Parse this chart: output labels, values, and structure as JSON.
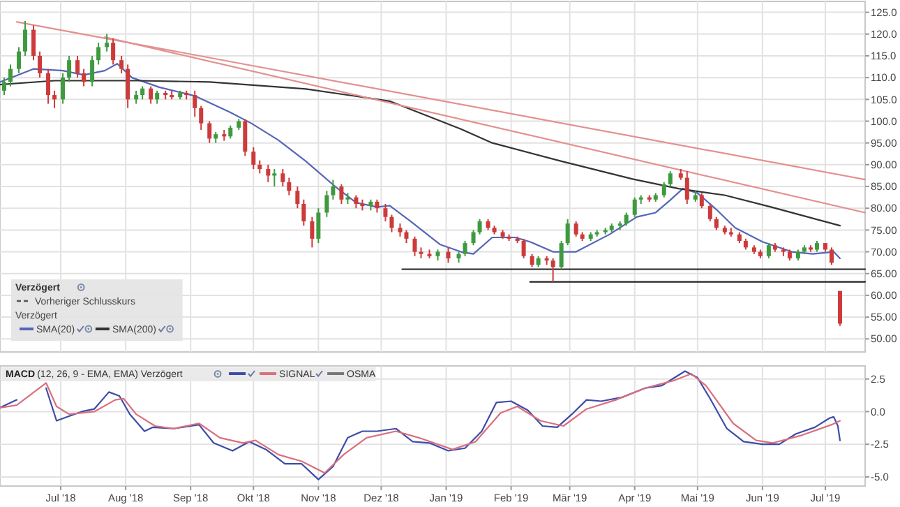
{
  "chart_data": [
    {
      "type": "candlestick",
      "legend_title": "Verzögert",
      "legend": "bottom left",
      "grid": true,
      "tick_labels": "y",
      "annotations": [
        "Vorheriger Schlusskurs",
        "Verzögert"
      ],
      "xlim": [
        "2018-06-02",
        "2019-07-20"
      ],
      "xticks": [
        {
          "value": "2018-07-01",
          "label": null
        },
        {
          "value": "2018-08-01",
          "label": null
        },
        {
          "value": "2018-09-01",
          "label": null
        },
        {
          "value": "2018-10-01",
          "label": null
        },
        {
          "value": "2018-11-01",
          "label": null
        },
        {
          "value": "2018-12-01",
          "label": null
        },
        {
          "value": "2019-01-01",
          "label": null
        },
        {
          "value": "2019-02-01",
          "label": null
        },
        {
          "value": "2019-03-01",
          "label": null
        },
        {
          "value": "2019-04-01",
          "label": null
        },
        {
          "value": "2019-05-01",
          "label": null
        },
        {
          "value": "2019-06-01",
          "label": null
        },
        {
          "value": "2019-07-01",
          "label": null
        }
      ],
      "ylim": [
        47,
        127.5
      ],
      "yticks": [
        {
          "value": 50,
          "label": "50.00"
        },
        {
          "value": 55,
          "label": "55.00"
        },
        {
          "value": 60,
          "label": "60.00"
        },
        {
          "value": 65,
          "label": "65.00"
        },
        {
          "value": 70,
          "label": "70.00"
        },
        {
          "value": 75,
          "label": "75.00"
        },
        {
          "value": 80,
          "label": "80.00"
        },
        {
          "value": 85,
          "label": "85.00"
        },
        {
          "value": 90,
          "label": "90.00"
        },
        {
          "value": 95,
          "label": "95.00"
        },
        {
          "value": 100,
          "label": "100.0"
        },
        {
          "value": 105,
          "label": "105.0"
        },
        {
          "value": 110,
          "label": "110.0"
        },
        {
          "value": 115,
          "label": "115.0"
        },
        {
          "value": 120,
          "label": "120.0"
        },
        {
          "value": 125,
          "label": "125.0"
        }
      ],
      "x": [
        "2018-06-04",
        "2018-06-07",
        "2018-06-11",
        "2018-06-14",
        "2018-06-18",
        "2018-06-21",
        "2018-06-25",
        "2018-06-28",
        "2018-07-02",
        "2018-07-05",
        "2018-07-09",
        "2018-07-12",
        "2018-07-16",
        "2018-07-19",
        "2018-07-23",
        "2018-07-26",
        "2018-07-30",
        "2018-08-02",
        "2018-08-06",
        "2018-08-09",
        "2018-08-13",
        "2018-08-16",
        "2018-08-20",
        "2018-08-23",
        "2018-08-27",
        "2018-08-30",
        "2018-09-03",
        "2018-09-06",
        "2018-09-10",
        "2018-09-13",
        "2018-09-17",
        "2018-09-20",
        "2018-09-24",
        "2018-09-27",
        "2018-10-01",
        "2018-10-04",
        "2018-10-08",
        "2018-10-11",
        "2018-10-15",
        "2018-10-18",
        "2018-10-22",
        "2018-10-25",
        "2018-10-29",
        "2018-11-01",
        "2018-11-05",
        "2018-11-08",
        "2018-11-12",
        "2018-11-15",
        "2018-11-19",
        "2018-11-22",
        "2018-11-26",
        "2018-11-29",
        "2018-12-03",
        "2018-12-06",
        "2018-12-10",
        "2018-12-13",
        "2018-12-17",
        "2018-12-20",
        "2018-12-24",
        "2018-12-28",
        "2019-01-02",
        "2019-01-07",
        "2019-01-10",
        "2019-01-14",
        "2019-01-17",
        "2019-01-21",
        "2019-01-24",
        "2019-01-28",
        "2019-01-31",
        "2019-02-04",
        "2019-02-07",
        "2019-02-11",
        "2019-02-14",
        "2019-02-18",
        "2019-02-21",
        "2019-02-25",
        "2019-02-28",
        "2019-03-04",
        "2019-03-07",
        "2019-03-11",
        "2019-03-14",
        "2019-03-18",
        "2019-03-21",
        "2019-03-25",
        "2019-03-28",
        "2019-04-01",
        "2019-04-04",
        "2019-04-08",
        "2019-04-11",
        "2019-04-15",
        "2019-04-18",
        "2019-04-23",
        "2019-04-26",
        "2019-04-30",
        "2019-05-03",
        "2019-05-07",
        "2019-05-10",
        "2019-05-14",
        "2019-05-17",
        "2019-05-21",
        "2019-05-24",
        "2019-05-28",
        "2019-05-31",
        "2019-06-04",
        "2019-06-07",
        "2019-06-11",
        "2019-06-14",
        "2019-06-18",
        "2019-06-21",
        "2019-06-24",
        "2019-06-27",
        "2019-07-01",
        "2019-07-04",
        "2019-07-08"
      ],
      "ohlc": [
        [
          107,
          110,
          106,
          109
        ],
        [
          109,
          113,
          108,
          112
        ],
        [
          112,
          117,
          111,
          116
        ],
        [
          116,
          123,
          115,
          121
        ],
        [
          121,
          122,
          114,
          115
        ],
        [
          115,
          116,
          110,
          111
        ],
        [
          111,
          112,
          104,
          106
        ],
        [
          106,
          107,
          103,
          105
        ],
        [
          105,
          111,
          104,
          110
        ],
        [
          110,
          115,
          109,
          114
        ],
        [
          114,
          115,
          110,
          111
        ],
        [
          111,
          112,
          108,
          109
        ],
        [
          109,
          115,
          108,
          114
        ],
        [
          114,
          118,
          113,
          117
        ],
        [
          117,
          120,
          116,
          118
        ],
        [
          118,
          119,
          113,
          114
        ],
        [
          114,
          115,
          111,
          112
        ],
        [
          112,
          113,
          103,
          105
        ],
        [
          105,
          107,
          104,
          106
        ],
        [
          106,
          108,
          105,
          107.5
        ],
        [
          107.5,
          108,
          104,
          105
        ],
        [
          105,
          107,
          104,
          106.5
        ],
        [
          106.5,
          107,
          105,
          106
        ],
        [
          106,
          107,
          105,
          105.5
        ],
        [
          105.5,
          107,
          105,
          106.5
        ],
        [
          106.5,
          107,
          105,
          106
        ],
        [
          106,
          107,
          101,
          103
        ],
        [
          103,
          103.5,
          98,
          99.5
        ],
        [
          99.5,
          100,
          95,
          96
        ],
        [
          96,
          97.5,
          95,
          97
        ],
        [
          97,
          98,
          95.5,
          96.5
        ],
        [
          96.5,
          99,
          96,
          98.5
        ],
        [
          98.5,
          100.5,
          98,
          100
        ],
        [
          100,
          100.5,
          92,
          93
        ],
        [
          93,
          94,
          89,
          90
        ],
        [
          90,
          91,
          88,
          89
        ],
        [
          89,
          90,
          86,
          87.5
        ],
        [
          87.5,
          89,
          85,
          88
        ],
        [
          88,
          89,
          85,
          86
        ],
        [
          86,
          87,
          83,
          84
        ],
        [
          84,
          85,
          80,
          81
        ],
        [
          81,
          82,
          76,
          77
        ],
        [
          77,
          78,
          71,
          73
        ],
        [
          73,
          80,
          72,
          79
        ],
        [
          79,
          84,
          78,
          83
        ],
        [
          83,
          86.5,
          82,
          85
        ],
        [
          85,
          85.5,
          81,
          82
        ],
        [
          82,
          83.5,
          81,
          82.5
        ],
        [
          82.5,
          83,
          80,
          81
        ],
        [
          81,
          82,
          79.5,
          80.5
        ],
        [
          80.5,
          82,
          79.5,
          81.5
        ],
        [
          81.5,
          82,
          79,
          80
        ],
        [
          80,
          81,
          77,
          78
        ],
        [
          78,
          78.5,
          74.5,
          75.5
        ],
        [
          75.5,
          76.5,
          73.5,
          74.5
        ],
        [
          74.5,
          75,
          72,
          73
        ],
        [
          73,
          73.5,
          69,
          70
        ],
        [
          70,
          71,
          68.5,
          69.5
        ],
        [
          69.5,
          70.5,
          68.5,
          69
        ],
        [
          69,
          70.5,
          68,
          70
        ],
        [
          70,
          71,
          67.5,
          68.5
        ],
        [
          68.5,
          70,
          67.5,
          69.5
        ],
        [
          69.5,
          72.5,
          69,
          72
        ],
        [
          72,
          75,
          71.5,
          74.5
        ],
        [
          74.5,
          77.5,
          74,
          77
        ],
        [
          77,
          77.5,
          75,
          75.5
        ],
        [
          75.5,
          76,
          74,
          74.5
        ],
        [
          74.5,
          75,
          73,
          73.5
        ],
        [
          73.5,
          74,
          72.5,
          73
        ],
        [
          73,
          73.5,
          72,
          72.5
        ],
        [
          72.5,
          73,
          68.5,
          69
        ],
        [
          69,
          69.5,
          66.5,
          67
        ],
        [
          67,
          69,
          66.5,
          68.5
        ],
        [
          68.5,
          69,
          67,
          68
        ],
        [
          68,
          68.5,
          63,
          66.5
        ],
        [
          66.5,
          72.5,
          66,
          72
        ],
        [
          72,
          77.5,
          71.5,
          76.5
        ],
        [
          76.5,
          77,
          73.5,
          74
        ],
        [
          74,
          74.5,
          72.5,
          73
        ],
        [
          73,
          74.5,
          72.5,
          74
        ],
        [
          74,
          75,
          73.5,
          74.5
        ],
        [
          74.5,
          75.5,
          74,
          75
        ],
        [
          75,
          76.5,
          74.5,
          76
        ],
        [
          76,
          77,
          75,
          76.5
        ],
        [
          76.5,
          79,
          76,
          78.5
        ],
        [
          78.5,
          82.5,
          78,
          82
        ],
        [
          82,
          83,
          81,
          82.5
        ],
        [
          82.5,
          83,
          81.5,
          82
        ],
        [
          82,
          83.5,
          81.5,
          83
        ],
        [
          83,
          86,
          82.5,
          85.5
        ],
        [
          85.5,
          88.5,
          85,
          88
        ],
        [
          88,
          89,
          86.5,
          87
        ],
        [
          87,
          88.5,
          81,
          82
        ],
        [
          82,
          84,
          81.5,
          83
        ],
        [
          83,
          83.5,
          80,
          80.5
        ],
        [
          80.5,
          81,
          77,
          77.5
        ],
        [
          77.5,
          78,
          75,
          75.5
        ],
        [
          75.5,
          76,
          74,
          74.5
        ],
        [
          74.5,
          75.5,
          73.5,
          74
        ],
        [
          74,
          74.5,
          72,
          72.5
        ],
        [
          72.5,
          73,
          70.5,
          71
        ],
        [
          71,
          71.5,
          69.5,
          70
        ],
        [
          70,
          70.5,
          68.5,
          69
        ],
        [
          69,
          72,
          68.5,
          71.5
        ],
        [
          71.5,
          72,
          70,
          70.5
        ],
        [
          70.5,
          71,
          69,
          70
        ],
        [
          70,
          70.5,
          68,
          68.5
        ],
        [
          68.5,
          70.5,
          68,
          70
        ],
        [
          70,
          71.5,
          69.5,
          71
        ],
        [
          71,
          71.5,
          70,
          70.5
        ],
        [
          70.5,
          72.5,
          70,
          72
        ],
        [
          72,
          72,
          70,
          70.5
        ],
        [
          70.5,
          71,
          67,
          67.5
        ],
        [
          61,
          61,
          53,
          53.5
        ]
      ],
      "series": [
        {
          "type": "line",
          "name": "SMA(20)",
          "color": "#5565b8",
          "x": [
            "2018-06-02",
            "2018-06-18",
            "2018-07-02",
            "2018-07-12",
            "2018-07-22",
            "2018-07-28",
            "2018-08-04",
            "2018-08-17",
            "2018-09-03",
            "2018-09-20",
            "2018-09-30",
            "2018-10-13",
            "2018-10-26",
            "2018-11-09",
            "2018-11-19",
            "2018-11-29",
            "2018-12-05",
            "2018-12-15",
            "2018-12-29",
            "2019-01-08",
            "2019-01-14",
            "2019-01-23",
            "2019-02-03",
            "2019-02-10",
            "2019-02-21",
            "2019-03-04",
            "2019-03-20",
            "2019-04-02",
            "2019-04-11",
            "2019-04-18",
            "2019-04-24",
            "2019-05-01",
            "2019-05-10",
            "2019-05-19",
            "2019-06-01",
            "2019-06-15",
            "2019-06-25",
            "2019-07-05",
            "2019-07-08"
          ],
          "values": [
            109,
            112,
            111.6,
            110.6,
            111.6,
            113.2,
            110,
            107.8,
            105.8,
            102,
            99.5,
            95.6,
            90.8,
            85,
            81.3,
            80.3,
            80.6,
            77,
            71.7,
            70,
            69.5,
            73.3,
            73.3,
            72.3,
            70,
            70,
            74,
            78,
            79,
            81.9,
            84.5,
            83.5,
            79.7,
            75.5,
            72.3,
            70,
            69.5,
            70,
            68.5
          ]
        },
        {
          "type": "line",
          "name": "SMA(200)",
          "color": "#333333",
          "x": [
            "2018-06-02",
            "2018-06-28",
            "2018-08-07",
            "2018-09-10",
            "2018-10-26",
            "2018-12-05",
            "2019-01-08",
            "2019-01-23",
            "2019-02-25",
            "2019-03-31",
            "2019-04-22",
            "2019-05-14",
            "2019-06-05",
            "2019-07-08"
          ],
          "values": [
            108.4,
            109.3,
            109.3,
            109,
            107.4,
            104.6,
            98.2,
            95,
            90.8,
            86.7,
            84.5,
            83,
            80.3,
            76
          ]
        },
        {
          "type": "line",
          "color": "#e39090",
          "x": [
            "2018-06-10",
            "2019-07-20"
          ],
          "values": [
            122.8,
            86.6
          ]
        },
        {
          "type": "line",
          "color": "#e39090",
          "x": [
            "2018-07-22",
            "2019-07-20"
          ],
          "values": [
            119.3,
            79
          ]
        },
        {
          "type": "line",
          "color": "#222222",
          "x": [
            "2018-12-11",
            "2019-07-20"
          ],
          "values": [
            66,
            66
          ]
        },
        {
          "type": "line",
          "color": "#222222",
          "x": [
            "2019-02-10",
            "2019-07-20"
          ],
          "values": [
            63.1,
            63.1
          ]
        }
      ]
    },
    {
      "type": "line",
      "title": "MACD",
      "subtitle": "(12, 26, 9 - EMA, EMA) Verzögert",
      "legend": "top left",
      "grid": true,
      "annotations": [
        "OSMA"
      ],
      "xlim": [
        "2018-06-02",
        "2019-07-20"
      ],
      "xticks": [
        {
          "value": "2018-07-01",
          "label": "Jul '18"
        },
        {
          "value": "2018-08-01",
          "label": "Aug '18"
        },
        {
          "value": "2018-09-01",
          "label": "Sep '18"
        },
        {
          "value": "2018-10-01",
          "label": "Okt '18"
        },
        {
          "value": "2018-11-01",
          "label": "Nov '18"
        },
        {
          "value": "2018-12-01",
          "label": "Dez '18"
        },
        {
          "value": "2019-01-01",
          "label": "Jan '19"
        },
        {
          "value": "2019-02-01",
          "label": "Feb '19"
        },
        {
          "value": "2019-03-01",
          "label": "Mär '19"
        },
        {
          "value": "2019-04-01",
          "label": "Apr '19"
        },
        {
          "value": "2019-05-01",
          "label": "Mai '19"
        },
        {
          "value": "2019-06-01",
          "label": "Jun '19"
        },
        {
          "value": "2019-07-01",
          "label": "Jul '19"
        }
      ],
      "ylim": [
        -5.7,
        3.5
      ],
      "yticks": [
        2.5,
        {
          "value": 0,
          "label": "0.0"
        },
        -2.5,
        {
          "value": -5,
          "label": "-5.0"
        }
      ],
      "series": [
        {
          "color": "#3d4ca8",
          "x": [
            "2018-06-02",
            "2018-06-10",
            "2018-06-17",
            "2018-06-20",
            "2018-06-24",
            "2018-06-29",
            "2018-07-04",
            "2018-07-11",
            "2018-07-17",
            "2018-07-24",
            "2018-07-29",
            "2018-08-03",
            "2018-08-10",
            "2018-08-14",
            "2018-08-24",
            "2018-09-05",
            "2018-09-12",
            "2018-09-21",
            "2018-09-29",
            "2018-10-07",
            "2018-10-16",
            "2018-10-24",
            "2018-11-01",
            "2018-11-08",
            "2018-11-15",
            "2018-11-22",
            "2018-11-29",
            "2018-12-08",
            "2018-12-16",
            "2018-12-24",
            "2019-01-02",
            "2019-01-10",
            "2019-01-18",
            "2019-01-25",
            "2019-02-01",
            "2019-02-09",
            "2019-02-16",
            "2019-02-23",
            "2019-03-02",
            "2019-03-09",
            "2019-03-16",
            "2019-03-26",
            "2019-04-06",
            "2019-04-14",
            "2019-04-25",
            "2019-05-01",
            "2019-05-07",
            "2019-05-15",
            "2019-05-23",
            "2019-06-01",
            "2019-06-09",
            "2019-06-17",
            "2019-06-26",
            "2019-07-03",
            "2019-07-05",
            "2019-07-07",
            "2019-07-08"
          ],
          "values": [
            0.3,
            0.9,
            null,
            null,
            1.8,
            -0.7,
            -0.4,
            0,
            0.2,
            1.5,
            1.2,
            -0.2,
            -1.5,
            -1.2,
            -1.3,
            -1,
            -2.4,
            -3,
            -2.3,
            -2.9,
            -4,
            -4,
            -5.2,
            -4.2,
            -2,
            -1.5,
            -1.5,
            -1.3,
            -2.3,
            -2.4,
            -3,
            -2.8,
            -1.5,
            0.7,
            0.8,
            0.1,
            -1.1,
            -1.2,
            -0.2,
            0.9,
            0.8,
            1.1,
            1.8,
            2,
            3.1,
            2.6,
            1,
            -1.3,
            -2.3,
            -2.5,
            -2.5,
            -1.7,
            -1.2,
            -0.5,
            -0.4,
            -1.1,
            -2.2
          ]
        },
        {
          "name": "SIGNAL",
          "color": "#d9707e",
          "x": [
            "2018-06-02",
            "2018-06-10",
            "2018-06-24",
            "2018-06-29",
            "2018-07-05",
            "2018-07-17",
            "2018-07-27",
            "2018-07-31",
            "2018-08-06",
            "2018-08-15",
            "2018-08-24",
            "2018-09-05",
            "2018-09-15",
            "2018-09-26",
            "2018-10-02",
            "2018-10-13",
            "2018-10-24",
            "2018-11-04",
            "2018-11-13",
            "2018-11-24",
            "2018-12-08",
            "2018-12-19",
            "2019-01-04",
            "2019-01-15",
            "2019-01-27",
            "2019-02-04",
            "2019-02-15",
            "2019-02-26",
            "2019-03-09",
            "2019-03-23",
            "2019-04-06",
            "2019-04-20",
            "2019-04-28",
            "2019-05-05",
            "2019-05-18",
            "2019-05-29",
            "2019-06-06",
            "2019-06-20",
            "2019-07-04",
            "2019-07-08"
          ],
          "values": [
            0.3,
            0.5,
            2.2,
            0.4,
            -0.2,
            0,
            0.9,
            1,
            -0.2,
            -1.1,
            -1.3,
            -0.9,
            -2,
            -2.4,
            -2.2,
            -3.3,
            -3.8,
            -4.7,
            -3.3,
            -2,
            -1.5,
            -2,
            -2.9,
            -2.3,
            -0.1,
            0.4,
            -0.7,
            -1.1,
            0.2,
            0.9,
            1.8,
            2.4,
            2.9,
            2,
            -0.9,
            -2.2,
            -2.4,
            -1.8,
            -1,
            -0.7
          ]
        }
      ]
    }
  ]
}
